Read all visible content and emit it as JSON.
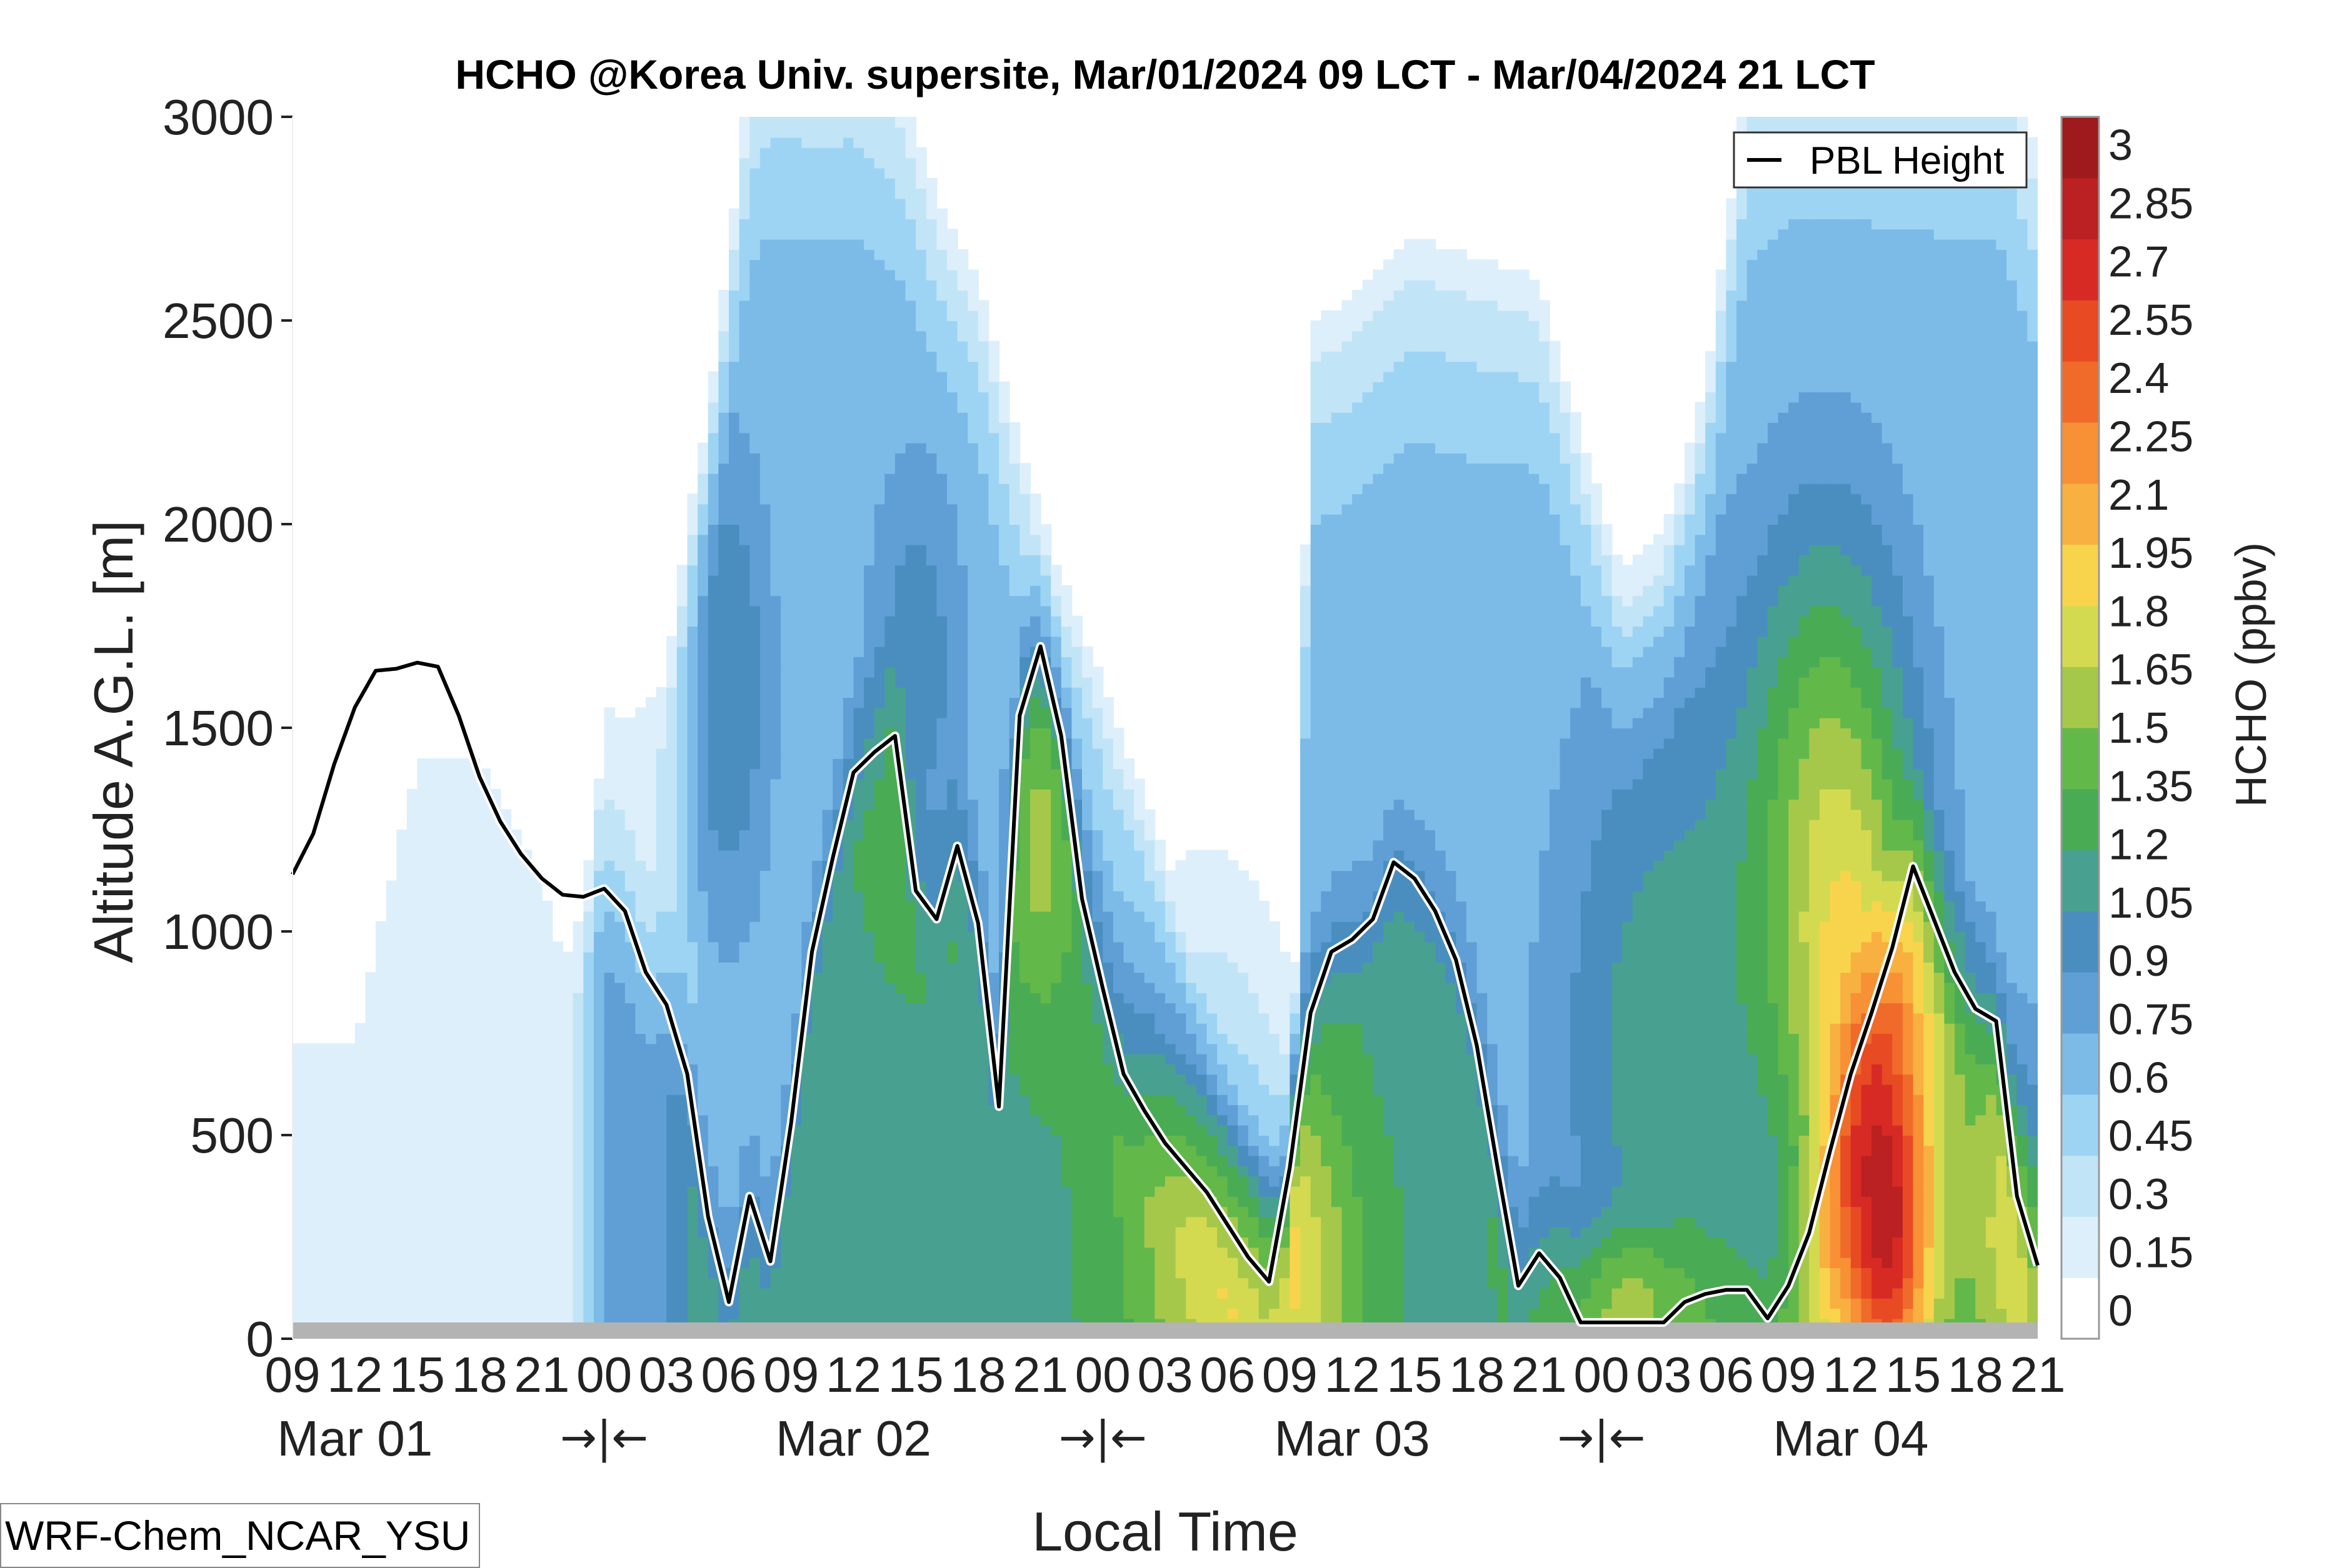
{
  "chart_data": {
    "type": "heatmap",
    "title": "HCHO @Korea Univ. supersite, Mar/01/2024 09 LCT - Mar/04/2024 21 LCT",
    "xlabel": "Local Time",
    "ylabel": "Altitude A.G.L. [m]",
    "ylim": [
      0,
      3000
    ],
    "yticks": [
      0,
      500,
      1000,
      1500,
      2000,
      2500,
      3000
    ],
    "xlim": [
      0,
      84
    ],
    "hour_tick_labels": [
      "09",
      "12",
      "15",
      "18",
      "21",
      "00",
      "03",
      "06",
      "09",
      "12",
      "15",
      "18",
      "21",
      "00",
      "03",
      "06",
      "09",
      "12",
      "15",
      "18",
      "21",
      "00",
      "03",
      "06",
      "09",
      "12",
      "15",
      "18",
      "21"
    ],
    "day_labels": [
      {
        "label": "Mar 01",
        "hour": 3
      },
      {
        "label": "Mar 02",
        "hour": 27
      },
      {
        "label": "Mar 03",
        "hour": 51
      },
      {
        "label": "Mar 04",
        "hour": 75
      }
    ],
    "day_break_label": "→|←",
    "day_break_hours": [
      15,
      39,
      63
    ],
    "colorbar": {
      "label": "HCHO (ppbv)",
      "levels": [
        0,
        0.15,
        0.3,
        0.45,
        0.6,
        0.75,
        0.9,
        1.05,
        1.2,
        1.35,
        1.5,
        1.65,
        1.8,
        1.95,
        2.1,
        2.25,
        2.4,
        2.55,
        2.7,
        2.85,
        3
      ],
      "tick_labels": [
        "0",
        "0.15",
        "0.3",
        "0.45",
        "0.6",
        "0.75",
        "0.9",
        "1.05",
        "1.2",
        "1.35",
        "1.5",
        "1.65",
        "1.8",
        "1.95",
        "2.1",
        "2.25",
        "2.4",
        "2.55",
        "2.7",
        "2.85",
        "3"
      ],
      "colors": [
        "#ffffff",
        "#ddeffa",
        "#c2e4f7",
        "#9dd4f3",
        "#7cbbe8",
        "#5f9fd6",
        "#4a8ebf",
        "#48a090",
        "#4aab55",
        "#63b84a",
        "#a6c84a",
        "#d4da50",
        "#f8d44c",
        "#f8b040",
        "#f89035",
        "#f06a2a",
        "#e84a24",
        "#d82a24",
        "#bb2022",
        "#9e1a1c"
      ]
    },
    "legend": {
      "entries": [
        "PBL Height"
      ],
      "placement": "top-right"
    },
    "pbl_height": {
      "name": "PBL Height",
      "x": [
        0,
        1,
        2,
        3,
        4,
        5,
        6,
        7,
        8,
        9,
        10,
        11,
        12,
        13,
        14,
        15,
        16,
        17,
        18,
        19,
        20,
        21,
        22,
        23,
        24,
        25,
        26,
        27,
        28,
        29,
        30,
        31,
        32,
        33,
        34,
        35,
        36,
        37,
        38,
        39,
        40,
        41,
        42,
        43,
        44,
        45,
        46,
        47,
        48,
        49,
        50,
        51,
        52,
        53,
        54,
        55,
        56,
        57,
        58,
        59,
        60,
        61,
        62,
        63,
        64,
        65,
        66,
        67,
        68,
        69,
        70,
        71,
        72,
        73,
        74,
        75,
        76,
        77,
        78,
        79,
        80,
        81,
        82,
        83,
        84
      ],
      "y": [
        1140,
        1240,
        1410,
        1550,
        1640,
        1645,
        1660,
        1650,
        1530,
        1380,
        1270,
        1190,
        1130,
        1090,
        1085,
        1105,
        1050,
        900,
        820,
        650,
        300,
        90,
        350,
        190,
        530,
        950,
        1180,
        1390,
        1440,
        1480,
        1100,
        1030,
        1210,
        1020,
        570,
        1530,
        1700,
        1480,
        1080,
        860,
        650,
        560,
        480,
        420,
        360,
        280,
        200,
        140,
        420,
        800,
        950,
        980,
        1030,
        1170,
        1130,
        1050,
        930,
        720,
        420,
        130,
        210,
        150,
        40,
        40,
        40,
        40,
        40,
        90,
        110,
        120,
        120,
        50,
        130,
        260,
        460,
        650,
        800,
        960,
        1160,
        1030,
        900,
        810,
        780,
        350,
        180
      ]
    },
    "ground_band_m": 40,
    "grid": false
  },
  "model_label": "WRF-Chem_NCAR_YSU"
}
